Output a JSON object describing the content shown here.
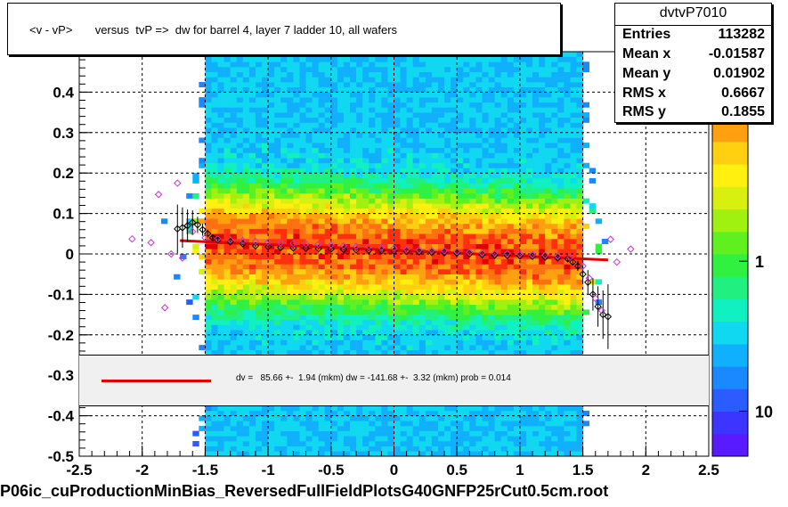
{
  "title": "<v - vP>       versus  tvP =>  dw for barrel 4, layer 7 ladder 10, all wafers",
  "stats": {
    "name": "dvtvP7010",
    "rows": [
      {
        "key": "Entries",
        "value": "113282"
      },
      {
        "key": "Mean x",
        "value": "-0.01587"
      },
      {
        "key": "Mean y",
        "value": "0.01902"
      },
      {
        "key": "RMS x",
        "value": "0.6667"
      },
      {
        "key": "RMS y",
        "value": "0.1855"
      }
    ]
  },
  "fit_text": "dv =   85.66 +-  1.94 (mkm) dw = -141.68 +-  3.32 (mkm) prob = 0.014",
  "footer": "P06ic_cuProductionMinBias_ReversedFullFieldPlotsG40GNFP25rCut0.5cm.root",
  "colors": {
    "fit_line": "#e00000",
    "profile_open": "#000000",
    "profile_magenta": "#cc33cc"
  },
  "chart_data": {
    "type": "heatmap",
    "xlim": [
      -2.5,
      2.5
    ],
    "ylim": [
      -0.5,
      0.5
    ],
    "x_ticks": [
      "-2.5",
      "-2",
      "-1.5",
      "-1",
      "-0.5",
      "0",
      "0.5",
      "1",
      "1.5",
      "2",
      "2.5"
    ],
    "x_tick_values": [
      -2.5,
      -2,
      -1.5,
      -1,
      -0.5,
      0,
      0.5,
      1,
      1.5,
      2,
      2.5
    ],
    "y_ticks": [
      "-0.5",
      "-0.4",
      "-0.3",
      "-0.2",
      "-0.1",
      "0",
      "0.1",
      "0.2",
      "0.3",
      "0.4"
    ],
    "y_tick_values": [
      -0.5,
      -0.4,
      -0.3,
      -0.2,
      -0.1,
      0,
      0.1,
      0.2,
      0.3,
      0.4
    ],
    "grid": true,
    "colorbar_labels": [
      {
        "label": "10",
        "value": 10
      },
      {
        "label": "1",
        "value": 1
      },
      {
        "label": "10",
        "value": 0.1
      }
    ],
    "fit_line": {
      "x": [
        -1.7,
        1.7
      ],
      "y": [
        0.033,
        -0.015
      ]
    },
    "profile_black": {
      "x": [
        -1.72,
        -1.68,
        -1.64,
        -1.6,
        -1.56,
        -1.52,
        -1.48,
        -1.44,
        -1.4,
        -1.3,
        -1.2,
        -1.1,
        -1.0,
        -0.9,
        -0.8,
        -0.7,
        -0.6,
        -0.5,
        -0.4,
        -0.3,
        -0.2,
        -0.1,
        0.0,
        0.1,
        0.2,
        0.3,
        0.4,
        0.5,
        0.6,
        0.7,
        0.8,
        0.9,
        1.0,
        1.1,
        1.2,
        1.3,
        1.38,
        1.42,
        1.46,
        1.5,
        1.54,
        1.58,
        1.62,
        1.66,
        1.7
      ],
      "y": [
        0.062,
        0.065,
        0.07,
        0.078,
        0.072,
        0.06,
        0.05,
        0.04,
        0.035,
        0.03,
        0.025,
        0.02,
        0.018,
        0.016,
        0.015,
        0.014,
        0.013,
        0.012,
        0.011,
        0.01,
        0.009,
        0.008,
        0.007,
        0.006,
        0.005,
        0.004,
        0.003,
        0.002,
        0.0,
        -0.002,
        -0.003,
        -0.004,
        -0.005,
        -0.006,
        -0.008,
        -0.01,
        -0.012,
        -0.02,
        -0.03,
        -0.05,
        -0.07,
        -0.1,
        -0.13,
        -0.15,
        -0.155
      ],
      "err": [
        0.06,
        0.05,
        0.04,
        0.03,
        0.02,
        0.015,
        0.01,
        0.008,
        0.006,
        0.004,
        0.003,
        0.003,
        0.003,
        0.002,
        0.002,
        0.002,
        0.002,
        0.002,
        0.002,
        0.002,
        0.002,
        0.002,
        0.002,
        0.002,
        0.002,
        0.002,
        0.002,
        0.002,
        0.002,
        0.002,
        0.002,
        0.002,
        0.003,
        0.003,
        0.003,
        0.004,
        0.006,
        0.008,
        0.012,
        0.02,
        0.03,
        0.04,
        0.05,
        0.06,
        0.08
      ]
    },
    "profile_magenta": {
      "x": [
        -2.08,
        -1.93,
        -1.87,
        -1.82,
        -1.77,
        -1.72,
        -1.68,
        -1.6,
        -1.5,
        -1.4,
        -1.3,
        -1.2,
        -1.1,
        -1.0,
        -0.9,
        -0.8,
        -0.7,
        -0.6,
        -0.5,
        -0.4,
        -0.3,
        -0.2,
        -0.1,
        0.0,
        0.1,
        0.2,
        0.3,
        0.4,
        0.5,
        0.6,
        0.7,
        0.8,
        0.9,
        1.0,
        1.1,
        1.2,
        1.3,
        1.4,
        1.5,
        1.55,
        1.6,
        1.65,
        1.72,
        1.77,
        1.88
      ],
      "y": [
        0.037,
        0.028,
        0.147,
        -0.133,
        0.0,
        0.175,
        -0.01,
        0.055,
        0.04,
        0.037,
        0.035,
        0.033,
        0.031,
        0.029,
        0.027,
        0.026,
        0.025,
        0.024,
        0.022,
        0.02,
        0.019,
        0.018,
        0.016,
        0.014,
        0.012,
        0.01,
        0.009,
        0.008,
        0.006,
        0.004,
        0.003,
        0.002,
        0.001,
        0.0,
        -0.002,
        -0.003,
        -0.005,
        -0.008,
        -0.03,
        -0.06,
        -0.11,
        -0.14,
        0.036,
        -0.02,
        0.012
      ],
      "err": [
        0.0,
        0.0,
        0.0,
        0.0,
        0.0,
        0.0,
        0.0,
        0.0,
        0.0,
        0.0,
        0.0,
        0.0,
        0.0,
        0.0,
        0.0,
        0.0,
        0.0,
        0.0,
        0.0,
        0.0,
        0.0,
        0.0,
        0.0,
        0.0,
        0.0,
        0.0,
        0.0,
        0.0,
        0.0,
        0.0,
        0.0,
        0.0,
        0.0,
        0.0,
        0.0,
        0.0,
        0.0,
        0.0,
        0.0,
        0.0,
        0.0,
        0.0,
        0.0,
        0.0,
        0.0
      ]
    }
  }
}
